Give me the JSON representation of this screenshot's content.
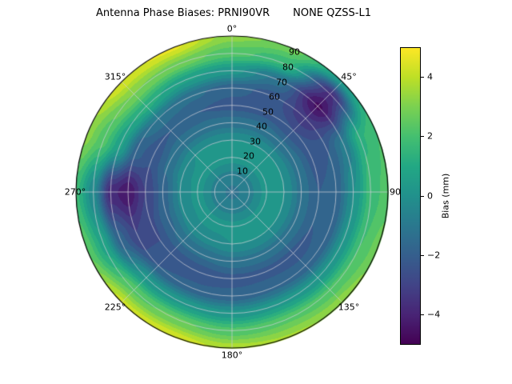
{
  "chart_data": {
    "type": "heatmap",
    "projection": "polar-contourf",
    "title": "Antenna Phase Biases: PRNI90VR       NONE QZSS-L1",
    "theta_zero": "top",
    "theta_direction": "clockwise",
    "angular_tick_angles_deg": [
      0,
      45,
      90,
      135,
      180,
      225,
      270,
      315
    ],
    "angular_tick_labels": [
      "0°",
      "45°",
      "90",
      "135°",
      "180°",
      "225°",
      "270°",
      "315°"
    ],
    "radial_tick_labels": [
      "10",
      "20",
      "30",
      "40",
      "50",
      "60",
      "70",
      "80",
      "90"
    ],
    "radial_label_angle_deg": 22.5,
    "radial_range": [
      0,
      90
    ],
    "contour_level_step_mm": 0.5,
    "grid": {
      "azimuths_deg": [
        0,
        22.5,
        45,
        67.5,
        90,
        112.5,
        135,
        157.5,
        180,
        202.5,
        225,
        247.5,
        270,
        292.5,
        315,
        337.5
      ],
      "elevations_deg": [
        0,
        10,
        20,
        30,
        40,
        50,
        60,
        70,
        80,
        90
      ],
      "bias_mm": [
        [
          -1.2,
          -0.6,
          0.2,
          0.0,
          -1.2,
          -2.2,
          -1.8,
          0.2,
          2.2,
          3.2
        ],
        [
          -1.2,
          -0.6,
          0.2,
          0.0,
          -1.2,
          -2.2,
          -2.2,
          -1.2,
          1.6,
          2.8
        ],
        [
          -1.2,
          -0.6,
          0.2,
          0.0,
          -1.4,
          -2.5,
          -3.4,
          -4.6,
          -3.6,
          0.4
        ],
        [
          -1.2,
          -0.6,
          0.2,
          0.0,
          -1.2,
          -2.2,
          -2.0,
          -0.8,
          1.4,
          2.0
        ],
        [
          -1.2,
          -0.6,
          0.2,
          0.0,
          -1.2,
          -2.0,
          -1.8,
          0.0,
          1.8,
          2.2
        ],
        [
          -1.2,
          -0.6,
          0.2,
          0.0,
          -1.2,
          -2.0,
          -1.8,
          0.2,
          2.0,
          2.8
        ],
        [
          -1.2,
          -0.6,
          0.2,
          0.0,
          -1.2,
          -2.2,
          -1.8,
          0.2,
          2.2,
          3.4
        ],
        [
          -1.2,
          -0.6,
          0.2,
          0.0,
          -1.2,
          -2.2,
          -1.6,
          0.4,
          2.4,
          3.6
        ],
        [
          -1.2,
          -0.6,
          0.2,
          0.0,
          -1.2,
          -2.2,
          -1.8,
          0.2,
          2.2,
          3.8
        ],
        [
          -1.2,
          -0.6,
          0.2,
          -0.2,
          -1.4,
          -2.4,
          -1.8,
          0.4,
          2.6,
          4.4
        ],
        [
          -1.2,
          -0.6,
          0.2,
          -0.2,
          -1.4,
          -2.4,
          -2.0,
          0.2,
          2.4,
          4.2
        ],
        [
          -1.2,
          -0.6,
          0.2,
          -0.4,
          -1.6,
          -2.6,
          -3.0,
          -1.8,
          0.8,
          2.4
        ],
        [
          -1.2,
          -0.6,
          0.2,
          -0.4,
          -1.8,
          -3.0,
          -4.4,
          -3.8,
          -0.4,
          1.6
        ],
        [
          -1.2,
          -0.6,
          0.2,
          -0.2,
          -1.4,
          -2.4,
          -1.8,
          0.6,
          2.2,
          3.2
        ],
        [
          -1.2,
          -0.6,
          0.2,
          0.0,
          -1.2,
          -2.0,
          -1.0,
          1.2,
          3.0,
          4.4
        ],
        [
          -1.2,
          -0.6,
          0.2,
          0.0,
          -1.2,
          -2.0,
          -1.4,
          0.6,
          2.8,
          4.6
        ]
      ]
    },
    "colorbar": {
      "label": "Bias (mm)",
      "min": -5,
      "max": 5,
      "colormap": "viridis",
      "ticks": [
        {
          "value": 4,
          "label": "4"
        },
        {
          "value": 2,
          "label": "2"
        },
        {
          "value": 0,
          "label": "0"
        },
        {
          "value": -2,
          "label": "−2"
        },
        {
          "value": -4,
          "label": "−4"
        }
      ],
      "stops": [
        [
          0.0,
          "#440154"
        ],
        [
          0.1,
          "#482475"
        ],
        [
          0.2,
          "#414487"
        ],
        [
          0.3,
          "#355f8d"
        ],
        [
          0.4,
          "#2a788e"
        ],
        [
          0.5,
          "#21918c"
        ],
        [
          0.6,
          "#22a884"
        ],
        [
          0.7,
          "#44bf70"
        ],
        [
          0.8,
          "#7ad151"
        ],
        [
          0.9,
          "#bddf26"
        ],
        [
          1.0,
          "#fde725"
        ]
      ]
    }
  }
}
